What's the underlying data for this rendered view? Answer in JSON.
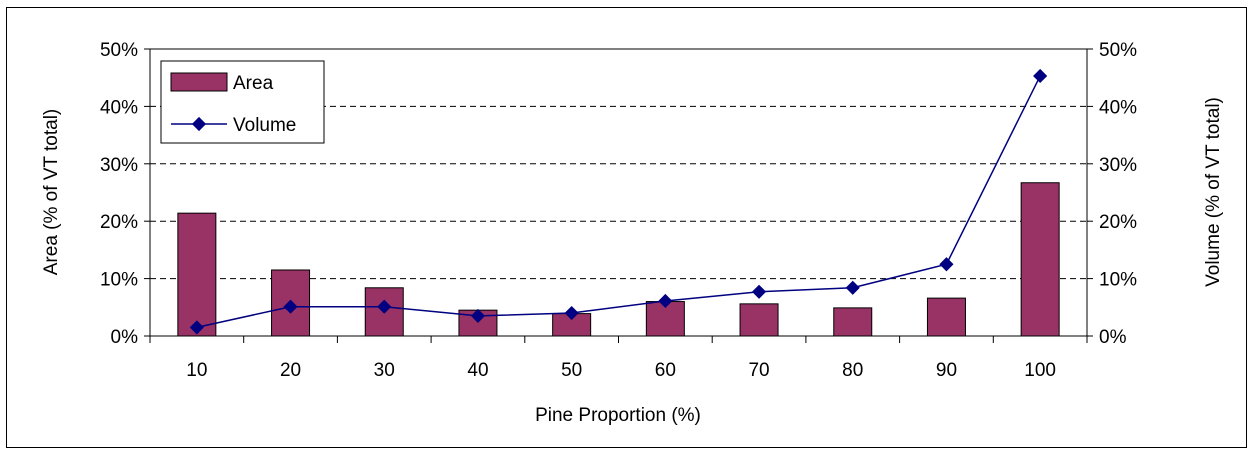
{
  "chart_data": {
    "type": "bar",
    "categories": [
      "10",
      "20",
      "30",
      "40",
      "50",
      "60",
      "70",
      "80",
      "90",
      "100"
    ],
    "series": [
      {
        "name": "Area",
        "type": "bar",
        "axis": "left",
        "values": [
          21.4,
          11.5,
          8.4,
          4.5,
          3.9,
          6.0,
          5.6,
          4.9,
          6.6,
          26.7
        ]
      },
      {
        "name": "Volume",
        "type": "line",
        "axis": "right",
        "values": [
          1.5,
          5.1,
          5.1,
          3.5,
          4.0,
          6.1,
          7.7,
          8.4,
          12.5,
          45.3
        ]
      }
    ],
    "xlabel": "Pine Proportion (%)",
    "ylabel": "Area (% of VT total)",
    "y2label": "Volume (% of VT total)",
    "ylim": [
      0,
      50
    ],
    "y2lim": [
      0,
      50
    ],
    "yticks": [
      "0%",
      "10%",
      "20%",
      "30%",
      "40%",
      "50%"
    ],
    "grid": "horizontal dashed",
    "legend": "top-left",
    "colors": {
      "bar": "#993366",
      "line": "#000080"
    }
  }
}
